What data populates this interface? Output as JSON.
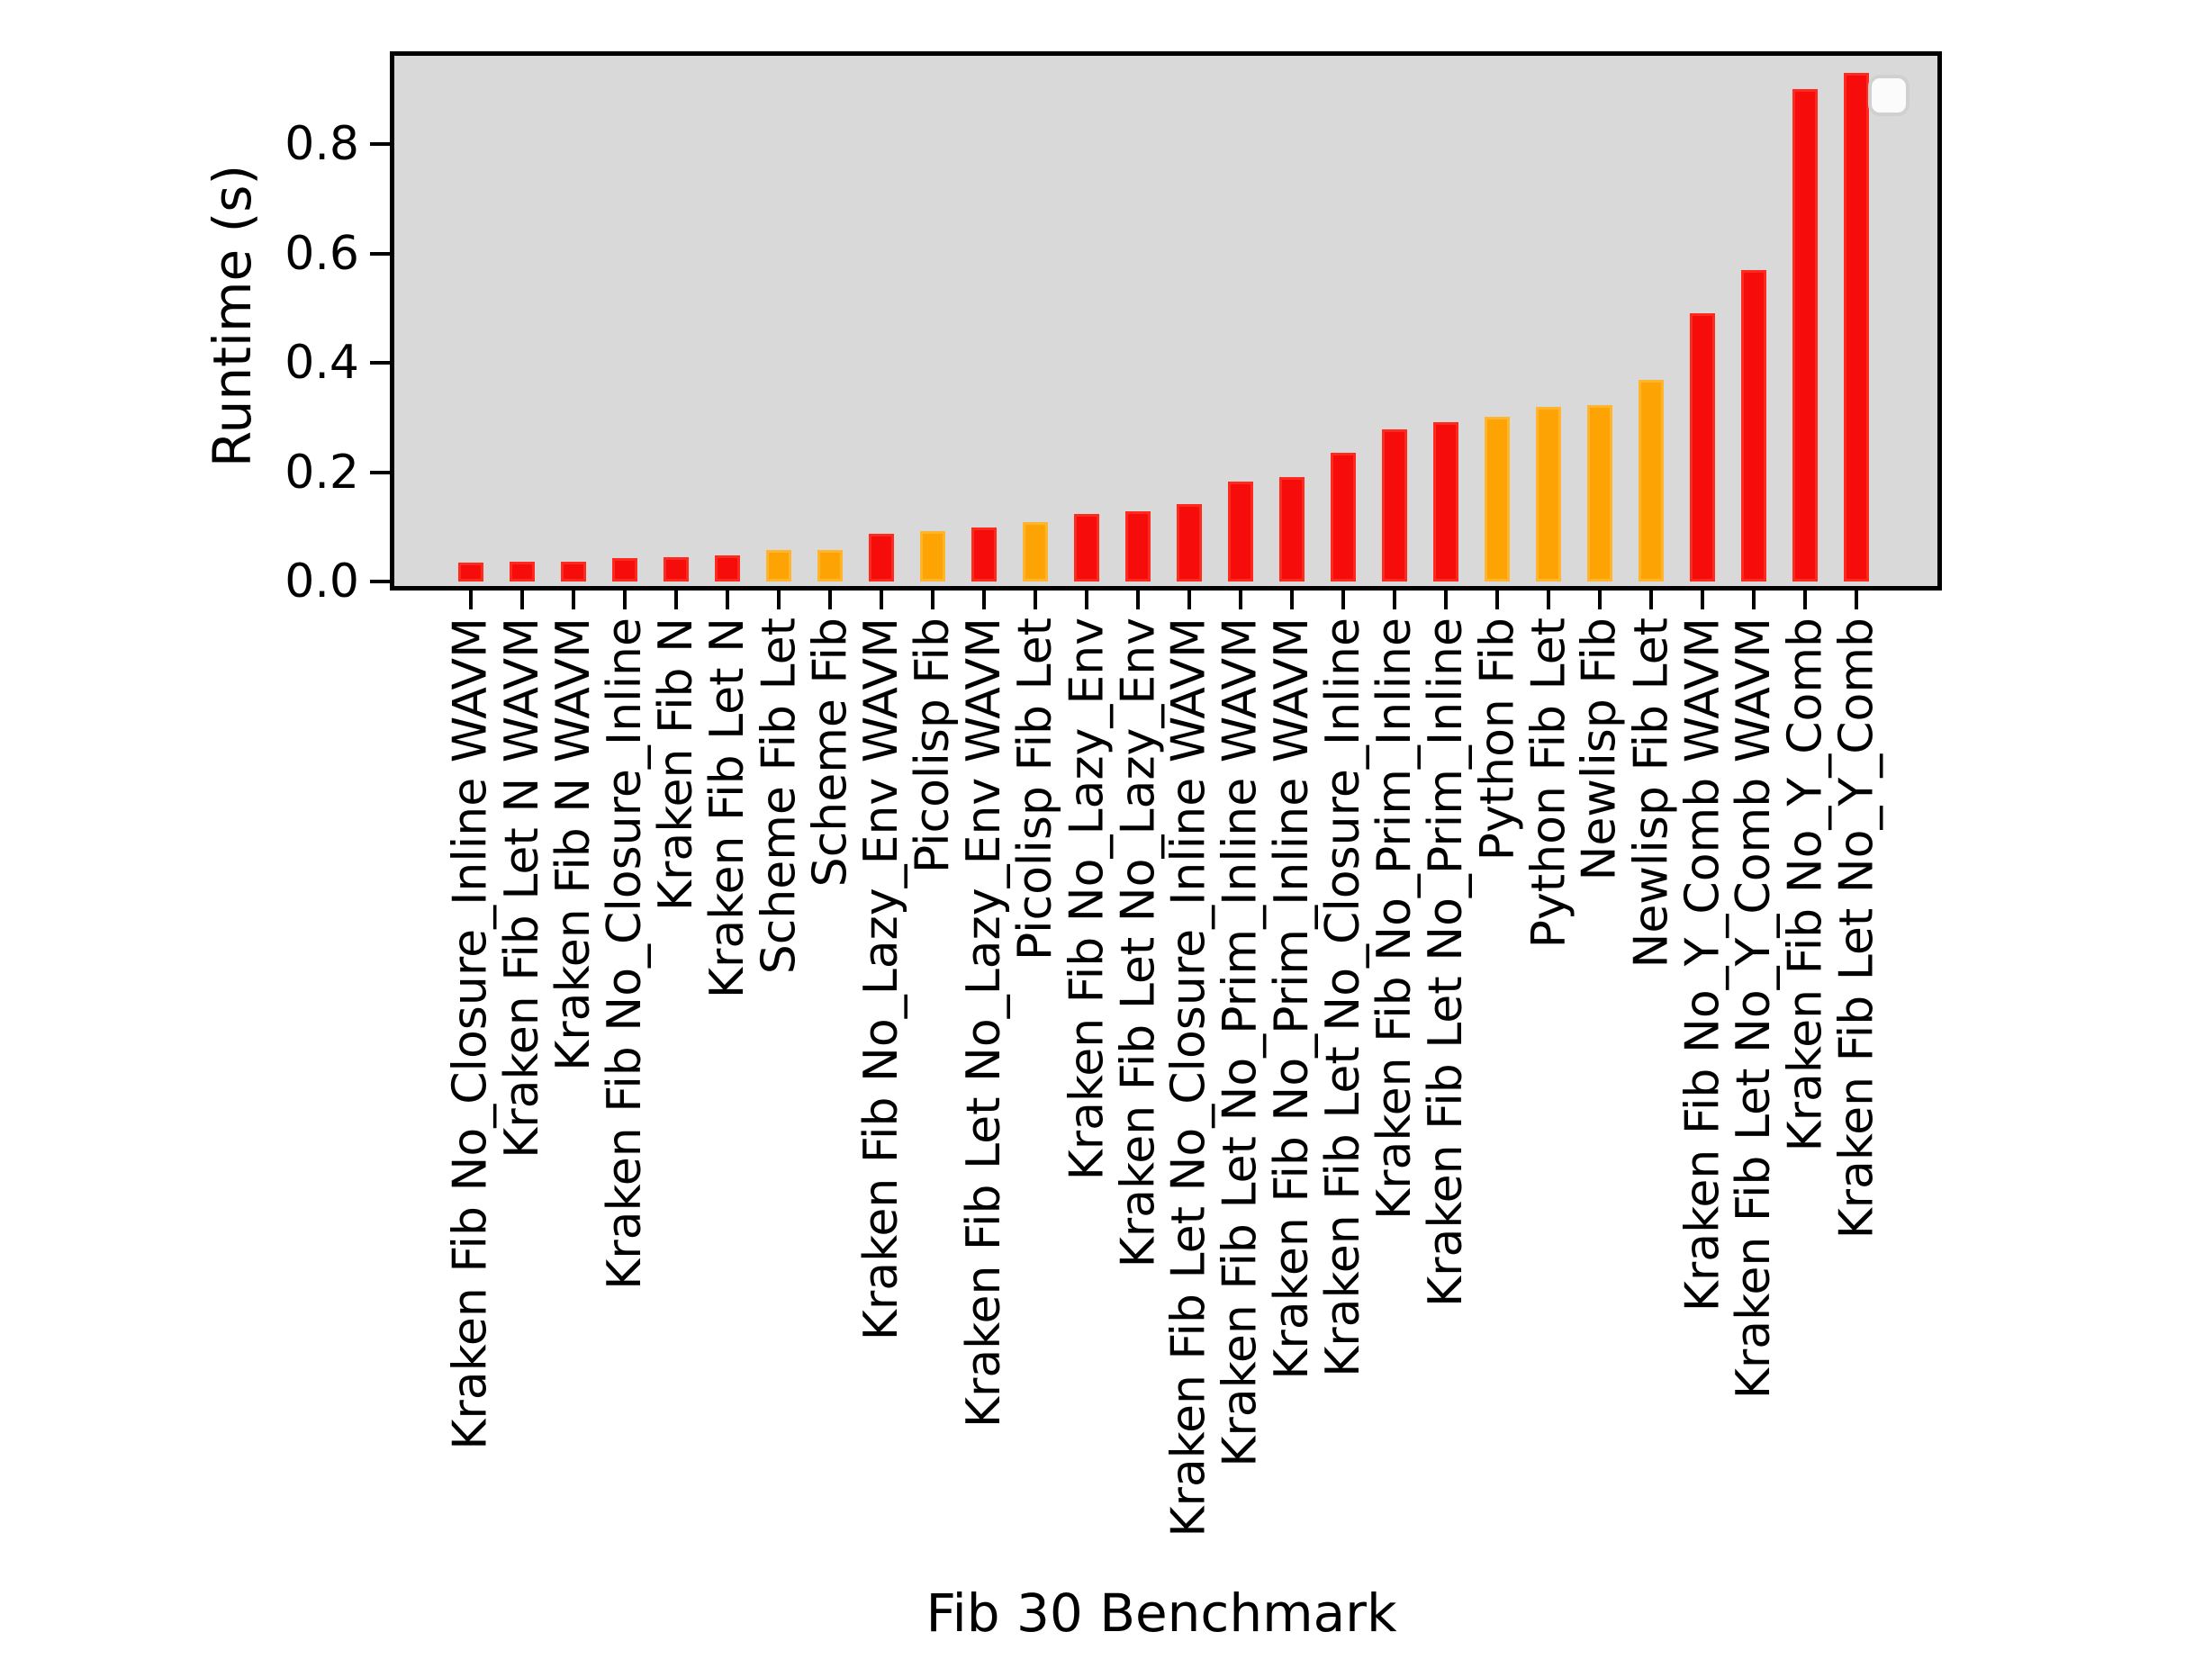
{
  "chart_data": {
    "type": "bar",
    "title": "",
    "xlabel": "Fib 30 Benchmark",
    "ylabel": "Runtime (s)",
    "categories": [
      "Kraken Fib No_Closure_Inline WAVM",
      "Kraken Fib Let N WAVM",
      "Kraken Fib N WAVM",
      "Kraken Fib No_Closure_Inline",
      "Kraken Fib N",
      "Kraken Fib Let N",
      "Scheme Fib Let",
      "Scheme Fib",
      "Kraken Fib No_Lazy_Env WAVM",
      "Picolisp Fib",
      "Kraken Fib Let No_Lazy_Env WAVM",
      "Picolisp Fib Let",
      "Kraken Fib No_Lazy_Env",
      "Kraken Fib Let No_Lazy_Env",
      "Kraken Fib Let No_Closure_Inline WAVM",
      "Kraken Fib Let No_Prim_Inline WAVM",
      "Kraken Fib No_Prim_Inline WAVM",
      "Kraken Fib Let No_Closure_Inline",
      "Kraken Fib No_Prim_Inline",
      "Kraken Fib Let No_Prim_Inline",
      "Python Fib",
      "Python Fib Let",
      "Newlisp Fib",
      "Newlisp Fib Let",
      "Kraken Fib No_Y_Comb WAVM",
      "Kraken Fib Let No_Y_Comb WAVM",
      "Kraken Fib No_Y_Comb",
      "Kraken Fib Let No_Y_Comb"
    ],
    "values": [
      0.035,
      0.036,
      0.036,
      0.042,
      0.044,
      0.048,
      0.057,
      0.058,
      0.088,
      0.092,
      0.098,
      0.108,
      0.124,
      0.129,
      0.142,
      0.182,
      0.191,
      0.235,
      0.279,
      0.291,
      0.301,
      0.319,
      0.322,
      0.369,
      0.49,
      0.57,
      0.9,
      0.93
    ],
    "bar_colors": [
      "red",
      "red",
      "red",
      "red",
      "red",
      "red",
      "orange",
      "orange",
      "red",
      "orange",
      "red",
      "orange",
      "red",
      "red",
      "red",
      "red",
      "red",
      "red",
      "red",
      "red",
      "orange",
      "orange",
      "orange",
      "orange",
      "red",
      "red",
      "red",
      "red"
    ],
    "yticks": [
      0.0,
      0.2,
      0.4,
      0.6,
      0.8
    ],
    "ytick_labels": [
      "0.0",
      "0.2",
      "0.4",
      "0.6",
      "0.8"
    ],
    "ylim": [
      0,
      0.97
    ],
    "grid": false,
    "legend_position": "upper right",
    "legend_entries": [],
    "colors": {
      "kraken_red": "#f60d0b",
      "other_orange": "#fda303",
      "plot_background": "#d9d9d9",
      "figure_background": "#ffffff"
    }
  }
}
